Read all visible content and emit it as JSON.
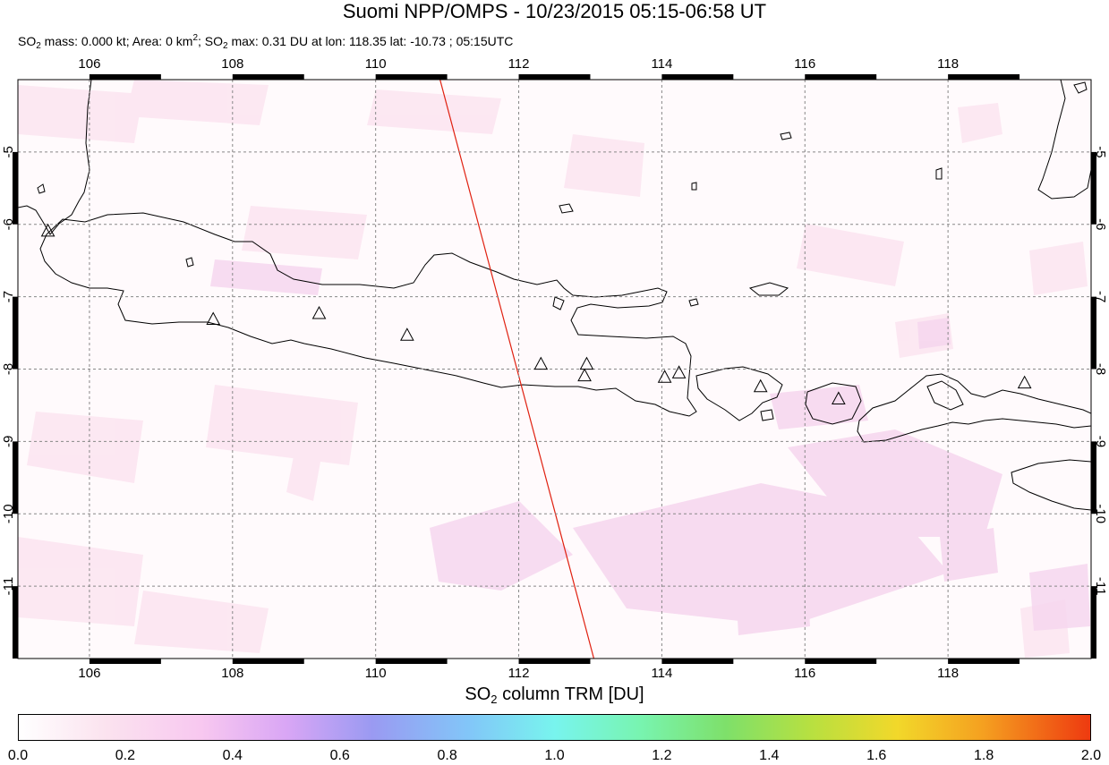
{
  "header": {
    "title": "Suomi NPP/OMPS - 10/23/2015 05:15-06:58 UT",
    "stats": {
      "so2_mass_label": "SO",
      "so2_mass_text": " mass: 0.000 kt; Area: 0 km",
      "area_text": "; SO",
      "so2_max_text": " max: 0.31 DU at lon: 118.35 lat: -10.73 ; 05:15UTC",
      "sub_2": "2",
      "sup_2": "2"
    }
  },
  "map": {
    "lon_range": [
      105,
      120
    ],
    "lat_range": [
      -12,
      -4
    ],
    "lon_ticks": [
      "106",
      "108",
      "110",
      "112",
      "114",
      "116",
      "118"
    ],
    "lat_ticks": [
      "-5",
      "-6",
      "-7",
      "-8",
      "-9",
      "-10",
      "-11"
    ],
    "lon_tick_values": [
      106,
      108,
      110,
      112,
      114,
      116,
      118
    ],
    "lat_tick_values": [
      -5,
      -6,
      -7,
      -8,
      -9,
      -10,
      -11
    ],
    "orbit_track": [
      [
        110.9,
        -4.0
      ],
      [
        113.05,
        -12.0
      ]
    ],
    "volcanoes": [
      [
        105.42,
        -6.1
      ],
      [
        107.73,
        -7.32
      ],
      [
        109.21,
        -7.24
      ],
      [
        110.44,
        -7.54
      ],
      [
        112.31,
        -7.94
      ],
      [
        112.95,
        -7.94
      ],
      [
        112.92,
        -8.1
      ],
      [
        114.04,
        -8.12
      ],
      [
        114.24,
        -8.06
      ],
      [
        115.38,
        -8.25
      ],
      [
        116.47,
        -8.42
      ],
      [
        119.07,
        -8.2
      ]
    ],
    "track_color": "#e02010",
    "land_outline_color": "#000000"
  },
  "colorbar": {
    "title_prefix": "SO",
    "title_sub": "2",
    "title_suffix": " column TRM [DU]",
    "labels": [
      "0.0",
      "0.2",
      "0.4",
      "0.6",
      "0.8",
      "1.0",
      "1.2",
      "1.4",
      "1.6",
      "1.8",
      "2.0"
    ],
    "values": [
      0.0,
      0.2,
      0.4,
      0.6,
      0.8,
      1.0,
      1.2,
      1.4,
      1.6,
      1.8,
      2.0
    ]
  }
}
